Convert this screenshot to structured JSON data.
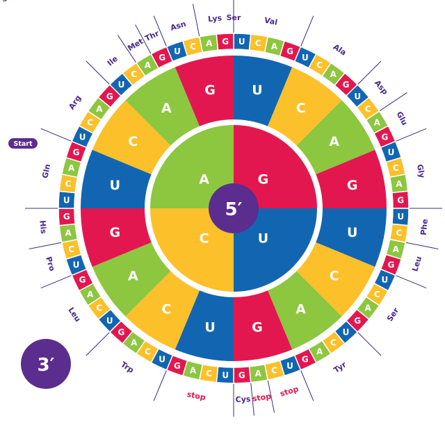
{
  "colors": {
    "A": "#8dc63f",
    "G": "#e3174f",
    "U": "#1266b1",
    "C": "#fcc02b",
    "center": "#5b2d8e",
    "aa_text": "#4a2a8a",
    "stop_text": "#e0174f",
    "line": "#3d2a7a"
  },
  "center_label": "5′",
  "corner_label": "3′",
  "start_badge": "Start",
  "inner_ring": [
    "G",
    "U",
    "C",
    "A"
  ],
  "middle_ring": [
    "U",
    "C",
    "A",
    "G",
    "U",
    "C",
    "A",
    "G",
    "U",
    "C",
    "A",
    "G",
    "U",
    "C",
    "A",
    "G"
  ],
  "outer_ring": [
    "U",
    "C",
    "A",
    "G",
    "U",
    "C",
    "A",
    "G",
    "U",
    "C",
    "A",
    "G",
    "U",
    "C",
    "A",
    "G",
    "U",
    "C",
    "A",
    "G",
    "U",
    "C",
    "A",
    "G",
    "U",
    "C",
    "A",
    "G",
    "U",
    "C",
    "A",
    "G",
    "U",
    "C",
    "A",
    "G",
    "U",
    "C",
    "A",
    "G",
    "U",
    "C",
    "A",
    "G",
    "U",
    "C",
    "A",
    "G",
    "U",
    "C",
    "A",
    "G",
    "U",
    "C",
    "A",
    "G",
    "U",
    "C",
    "A",
    "G",
    "U",
    "C",
    "A",
    "G"
  ],
  "amino_acids": [
    {
      "label": "Val",
      "stop": false
    },
    {
      "label": "Ala",
      "stop": false
    },
    {
      "label": "Asp",
      "stop": false
    },
    {
      "label": "Glu",
      "stop": false
    },
    {
      "label": "Gly",
      "stop": false
    },
    {
      "label": "Phe",
      "stop": false
    },
    {
      "label": "Leu",
      "stop": false
    },
    {
      "label": "Ser",
      "stop": false
    },
    {
      "label": "Tyr",
      "stop": false
    },
    {
      "label": "stop",
      "stop": true
    },
    {
      "label": "stop",
      "stop": true
    },
    {
      "label": "Cys",
      "stop": false
    },
    {
      "label": "stop",
      "stop": true
    },
    {
      "label": "Trp",
      "stop": false
    },
    {
      "label": "Leu",
      "stop": false
    },
    {
      "label": "Pro",
      "stop": false
    },
    {
      "label": "His",
      "stop": false
    },
    {
      "label": "Gln",
      "stop": false
    },
    {
      "label": "Arg",
      "stop": false
    },
    {
      "label": "Ile",
      "stop": false
    },
    {
      "label": "Met",
      "stop": false
    },
    {
      "label": "Thr",
      "stop": false
    },
    {
      "label": "Asn",
      "stop": false
    },
    {
      "label": "Lys",
      "stop": false
    },
    {
      "label": "Ser",
      "stop": false
    },
    {
      "label": "Arg",
      "stop": false
    }
  ]
}
